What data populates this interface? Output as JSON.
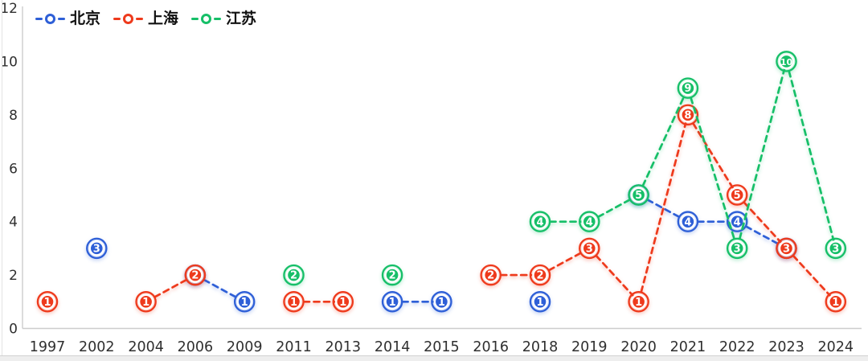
{
  "chart_data": {
    "type": "line",
    "title": "",
    "xlabel": "",
    "ylabel": "",
    "line_style": "dashed",
    "grid": false,
    "legend_position": "top-left",
    "ylim": [
      0,
      12
    ],
    "yticks": [
      "0",
      "2",
      "4",
      "6",
      "8",
      "10",
      "12"
    ],
    "categories": [
      "1997",
      "2002",
      "2004",
      "2006",
      "2009",
      "2011",
      "2013",
      "2014",
      "2015",
      "2016",
      "2018",
      "2019",
      "2020",
      "2021",
      "2022",
      "2023",
      "2024"
    ],
    "series": [
      {
        "key": "beijing",
        "name": "北京",
        "color": "#2e5fd7",
        "points": [
          {
            "x": "2002",
            "y": 3
          },
          {
            "x": "2006",
            "y": 2
          },
          {
            "x": "2009",
            "y": 1
          },
          {
            "x": "2014",
            "y": 1
          },
          {
            "x": "2015",
            "y": 1
          },
          {
            "x": "2018",
            "y": 1
          },
          {
            "x": "2020",
            "y": 5
          },
          {
            "x": "2021",
            "y": 4
          },
          {
            "x": "2022",
            "y": 4
          },
          {
            "x": "2023",
            "y": 3
          }
        ]
      },
      {
        "key": "shanghai",
        "name": "上海",
        "color": "#ee3a1c",
        "points": [
          {
            "x": "1997",
            "y": 1
          },
          {
            "x": "2004",
            "y": 1
          },
          {
            "x": "2006",
            "y": 2
          },
          {
            "x": "2011",
            "y": 1
          },
          {
            "x": "2013",
            "y": 1
          },
          {
            "x": "2016",
            "y": 2
          },
          {
            "x": "2018",
            "y": 2
          },
          {
            "x": "2019",
            "y": 3
          },
          {
            "x": "2020",
            "y": 1
          },
          {
            "x": "2021",
            "y": 8
          },
          {
            "x": "2022",
            "y": 5
          },
          {
            "x": "2023",
            "y": 3
          },
          {
            "x": "2024",
            "y": 1
          }
        ]
      },
      {
        "key": "jiangsu",
        "name": "江苏",
        "color": "#16bf68",
        "points": [
          {
            "x": "2011",
            "y": 2
          },
          {
            "x": "2014",
            "y": 2
          },
          {
            "x": "2018",
            "y": 4
          },
          {
            "x": "2019",
            "y": 4
          },
          {
            "x": "2020",
            "y": 5
          },
          {
            "x": "2021",
            "y": 9
          },
          {
            "x": "2022",
            "y": 3
          },
          {
            "x": "2023",
            "y": 10
          },
          {
            "x": "2024",
            "y": 3
          }
        ]
      }
    ]
  }
}
